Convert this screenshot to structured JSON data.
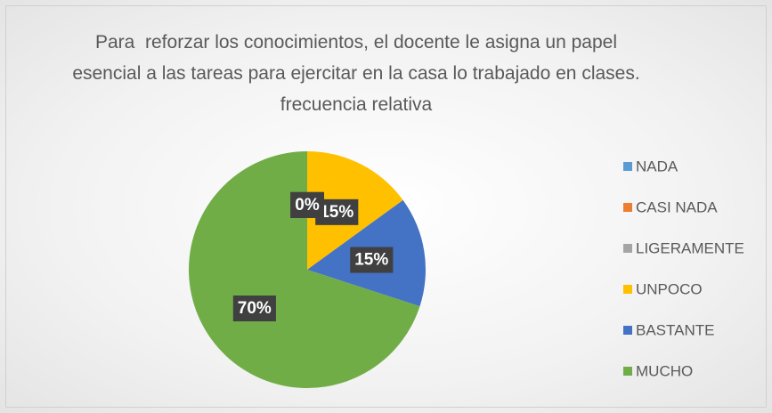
{
  "chart_data": {
    "type": "pie",
    "title": "Para  reforzar los conocimientos, el docente le asigna un papel esencial a las tareas para ejercitar en la casa lo trabajado en clases. frecuencia relativa",
    "categories": [
      "NADA",
      "CASI NADA",
      "LIGERAMENTE",
      "UNPOCO",
      "BASTANTE",
      "MUCHO"
    ],
    "values": [
      0,
      0,
      0,
      15,
      15,
      70
    ],
    "value_labels": [
      "0%",
      "0%",
      "0%",
      "15%",
      "15%",
      "70%"
    ],
    "colors": [
      "#5b9bd5",
      "#ed7d31",
      "#a5a5a5",
      "#ffc000",
      "#4472c4",
      "#70ad47"
    ],
    "legend": "right"
  }
}
